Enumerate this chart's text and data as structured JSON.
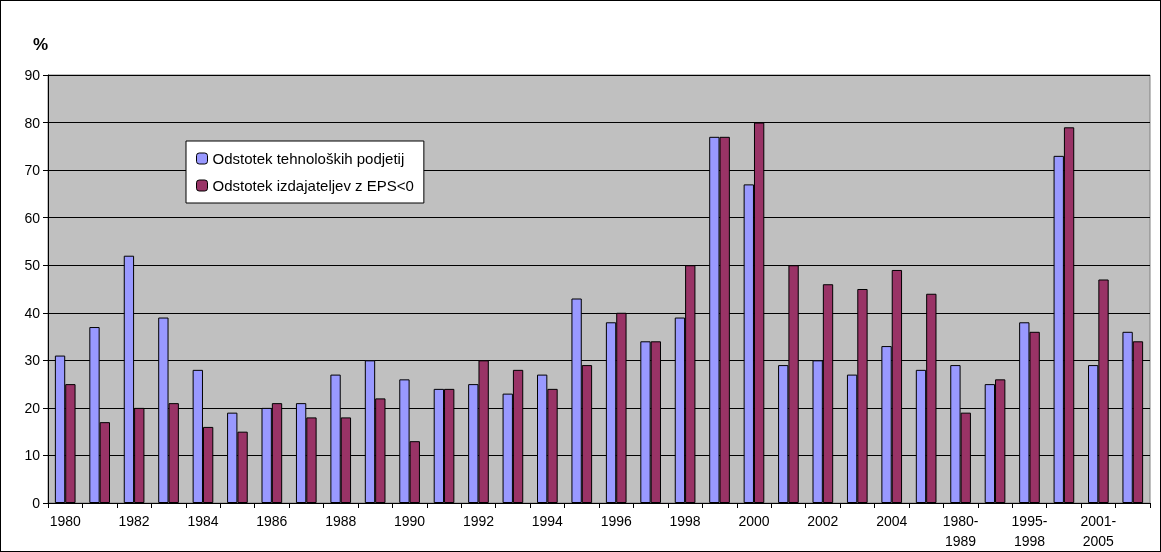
{
  "chart_data": {
    "type": "bar",
    "ylabel": "%",
    "categories": [
      "1980",
      null,
      "1982",
      null,
      "1984",
      null,
      "1986",
      null,
      "1988",
      null,
      "1990",
      null,
      "1992",
      null,
      "1994",
      null,
      "1996",
      null,
      "1998",
      null,
      "2000",
      null,
      "2002",
      null,
      "2004",
      null,
      "1980-\n1989",
      null,
      "1995-\n1998",
      null,
      "2001-\n2005",
      null
    ],
    "series": [
      {
        "name": "Odstotek tehnoloških podjetij",
        "color": "#9999ff",
        "values": [
          31,
          37,
          52,
          39,
          28,
          19,
          20,
          21,
          27,
          30,
          26,
          24,
          25,
          23,
          27,
          43,
          38,
          34,
          39,
          77,
          67,
          29,
          30,
          27,
          33,
          28,
          29,
          25,
          38,
          73,
          29,
          36
        ]
      },
      {
        "name": "Odstotek izdajateljev z EPS<0",
        "color": "#993366",
        "values": [
          25,
          17,
          20,
          21,
          16,
          15,
          21,
          18,
          18,
          22,
          13,
          24,
          30,
          28,
          24,
          29,
          40,
          34,
          50,
          77,
          80,
          50,
          46,
          45,
          49,
          44,
          19,
          26,
          36,
          79,
          47,
          34
        ]
      }
    ],
    "ylim": [
      0,
      90
    ],
    "yticks": [
      0,
      10,
      20,
      30,
      40,
      50,
      60,
      70,
      80,
      90
    ],
    "grid": "y",
    "legend": "top left"
  }
}
